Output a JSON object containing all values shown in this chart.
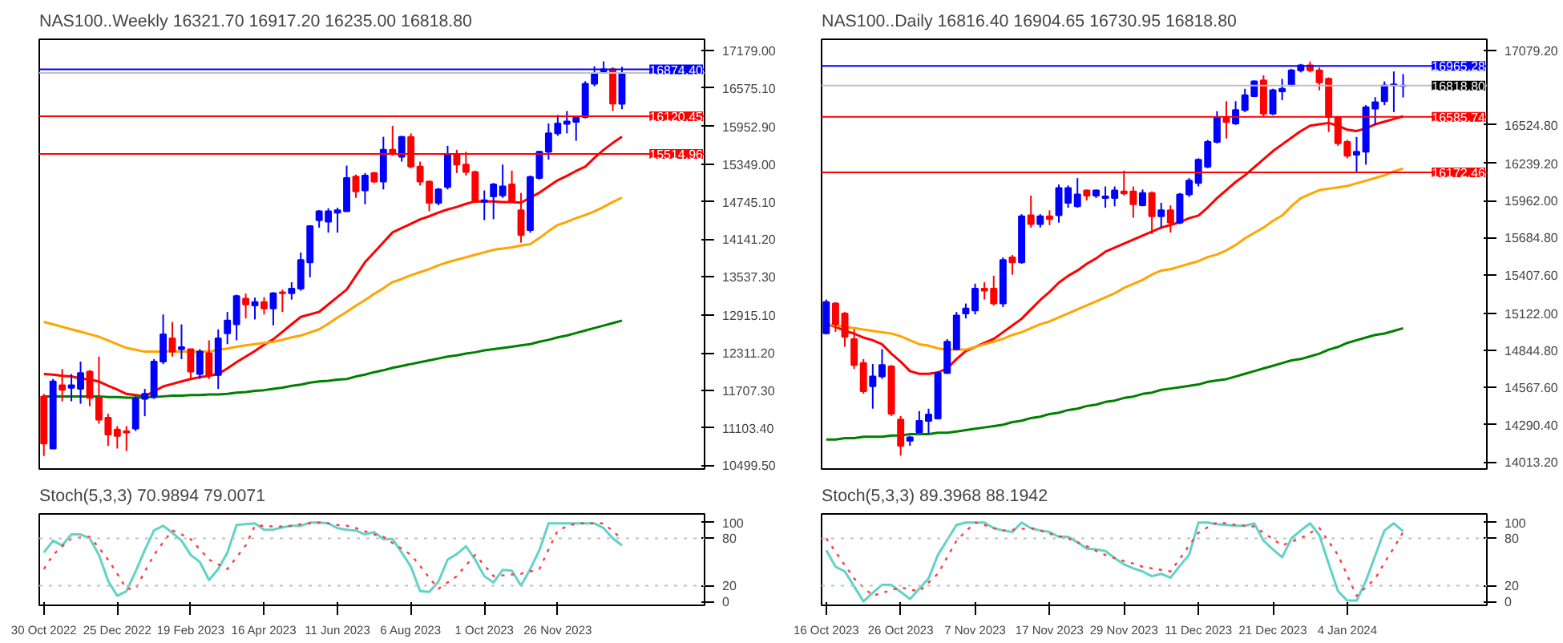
{
  "chart_data": [
    {
      "type": "candlestick",
      "title": "NAS100..Weekly  16321.70 16917.20 16235.00 16818.80",
      "tick_labels": "y",
      "grid": false,
      "categories": [
        null,
        null,
        null,
        null,
        null,
        null,
        null,
        null,
        null,
        null,
        null,
        null,
        null,
        null,
        null,
        null,
        null,
        null,
        null,
        null,
        null,
        null,
        null,
        null,
        null,
        null,
        null,
        null,
        null,
        null,
        null,
        null,
        null,
        null,
        null,
        null,
        null,
        null,
        null,
        null,
        null,
        null,
        null,
        null,
        null,
        null,
        null,
        null,
        null,
        null,
        null,
        null,
        null,
        null,
        null,
        null,
        null,
        null,
        null,
        null,
        null,
        null,
        null,
        null
      ],
      "ohlc": [
        [
          11610,
          11650,
          10650,
          10850
        ],
        [
          10770,
          11890,
          10770,
          11850
        ],
        [
          11790,
          12050,
          11530,
          11715
        ],
        [
          11747,
          11970,
          11530,
          11790
        ],
        [
          11730,
          12170,
          11490,
          11986
        ],
        [
          12010,
          12034,
          11450,
          11586
        ],
        [
          11586,
          12250,
          11170,
          11235
        ],
        [
          11267,
          11330,
          10812,
          10995
        ],
        [
          11075,
          11130,
          10770,
          10971
        ],
        [
          11051,
          11130,
          10730,
          11027
        ],
        [
          11091,
          11610,
          11051,
          11570
        ],
        [
          11570,
          11730,
          11290,
          11650
        ],
        [
          11610,
          12210,
          11570,
          12170
        ],
        [
          12170,
          12929,
          12130,
          12609
        ],
        [
          12545,
          12809,
          12250,
          12330
        ],
        [
          12370,
          12769,
          12210,
          12401
        ],
        [
          12370,
          12370,
          11890,
          12010
        ],
        [
          11970,
          12370,
          11890,
          12330
        ],
        [
          12306,
          12513,
          11890,
          11954
        ],
        [
          11954,
          12689,
          11730,
          12545
        ],
        [
          12625,
          12969,
          12450,
          12833
        ],
        [
          12769,
          13248,
          12513,
          13224
        ],
        [
          13184,
          13264,
          12865,
          13089
        ],
        [
          13073,
          13200,
          12849,
          13128
        ],
        [
          13128,
          13208,
          12929,
          13025
        ],
        [
          13025,
          13288,
          12753,
          13272
        ],
        [
          13288,
          13328,
          12969,
          13272
        ],
        [
          13272,
          13448,
          13168,
          13344
        ],
        [
          13344,
          13927,
          13312,
          13808
        ],
        [
          13768,
          14367,
          13528,
          14351
        ],
        [
          14447,
          14607,
          14327,
          14591
        ],
        [
          14423,
          14639,
          14247,
          14591
        ],
        [
          14567,
          14647,
          14247,
          14607
        ],
        [
          14591,
          15326,
          14591,
          15126
        ],
        [
          15150,
          15182,
          14807,
          14910
        ],
        [
          14926,
          15206,
          14703,
          15166
        ],
        [
          15206,
          15222,
          15046,
          15070
        ],
        [
          15070,
          15789,
          14942,
          15581
        ],
        [
          15581,
          15965,
          15486,
          15525
        ],
        [
          15470,
          15805,
          15390,
          15789
        ],
        [
          15789,
          15845,
          15286,
          15310
        ],
        [
          15310,
          15390,
          15006,
          15070
        ],
        [
          15070,
          15086,
          14591,
          14727
        ],
        [
          14727,
          14966,
          14687,
          14942
        ],
        [
          14982,
          15645,
          14942,
          15501
        ],
        [
          15501,
          15581,
          15206,
          15342
        ],
        [
          15342,
          15549,
          15166,
          15222
        ],
        [
          15222,
          15246,
          14727,
          14743
        ],
        [
          14743,
          14926,
          14447,
          14767
        ],
        [
          14830,
          15046,
          14463,
          15022
        ],
        [
          14846,
          15342,
          14806,
          14990
        ],
        [
          15022,
          15246,
          14727,
          14751
        ],
        [
          14607,
          14886,
          14087,
          14207
        ],
        [
          14287,
          15166,
          14247,
          15142
        ],
        [
          15126,
          15565,
          15102,
          15549
        ],
        [
          15549,
          16005,
          15422,
          15845
        ],
        [
          15845,
          16141,
          15805,
          16005
        ],
        [
          15997,
          16205,
          15845,
          16037
        ],
        [
          16029,
          16125,
          15725,
          16109
        ],
        [
          16109,
          16684,
          16085,
          16644
        ],
        [
          16644,
          16924,
          16604,
          16812
        ],
        [
          16844,
          17004,
          16804,
          16876
        ],
        [
          16876,
          16908,
          16205,
          16324
        ],
        [
          16321.7,
          16917.2,
          16235.0,
          16818.8
        ]
      ],
      "colors": [
        "#ff0000",
        "#0000ff",
        "#ff0000",
        "#0000ff",
        "#0000ff",
        "#ff0000",
        "#ff0000",
        "#ff0000",
        "#ff0000",
        "#ff0000",
        "#0000ff",
        "#0000ff",
        "#0000ff",
        "#0000ff",
        "#ff0000",
        "#0000ff",
        "#ff0000",
        "#0000ff",
        "#ff0000",
        "#0000ff",
        "#0000ff",
        "#0000ff",
        "#ff0000",
        "#0000ff",
        "#ff0000",
        "#0000ff",
        "#ff0000",
        "#0000ff",
        "#0000ff",
        "#0000ff",
        "#0000ff",
        "#0000ff",
        "#0000ff",
        "#0000ff",
        "#ff0000",
        "#0000ff",
        "#ff0000",
        "#0000ff",
        "#ff0000",
        "#0000ff",
        "#ff0000",
        "#ff0000",
        "#ff0000",
        "#0000ff",
        "#0000ff",
        "#ff0000",
        "#ff0000",
        "#ff0000",
        "#0000ff",
        "#0000ff",
        "#0000ff",
        "#ff0000",
        "#ff0000",
        "#0000ff",
        "#0000ff",
        "#0000ff",
        "#0000ff",
        "#0000ff",
        "#0000ff",
        "#0000ff",
        "#0000ff",
        "#0000ff",
        "#ff0000",
        "#0000ff"
      ],
      "series": [
        {
          "type": "line",
          "color": "#ff0000",
          "values": [
            11970,
            11960,
            11940,
            11930,
            11900,
            11880,
            11850,
            11780,
            11720,
            11650,
            11630,
            11610,
            11690,
            11770,
            11810,
            11850,
            11890,
            11920,
            11940,
            11970,
            12060,
            12160,
            12250,
            12340,
            12440,
            12530,
            12650,
            12770,
            12890,
            12930,
            12970,
            13090,
            13210,
            13330,
            13550,
            13770,
            13930,
            14090,
            14250,
            14320,
            14390,
            14460,
            14510,
            14570,
            14620,
            14660,
            14710,
            14750,
            14750,
            14750,
            14740,
            14740,
            14730,
            14810,
            14890,
            14990,
            15090,
            15160,
            15240,
            15310,
            15450,
            15580,
            15690,
            15790
          ]
        },
        {
          "type": "line",
          "color": "#ffa500",
          "values": [
            12810,
            12770,
            12730,
            12690,
            12650,
            12610,
            12570,
            12510,
            12450,
            12390,
            12360,
            12330,
            12330,
            12330,
            12330,
            12330,
            12330,
            12330,
            12330,
            12360,
            12380,
            12410,
            12430,
            12450,
            12470,
            12490,
            12520,
            12560,
            12590,
            12640,
            12690,
            12780,
            12880,
            12970,
            13070,
            13160,
            13260,
            13350,
            13450,
            13500,
            13560,
            13610,
            13660,
            13720,
            13770,
            13810,
            13850,
            13890,
            13930,
            13970,
            13990,
            14010,
            14040,
            14060,
            14160,
            14270,
            14370,
            14420,
            14480,
            14530,
            14590,
            14660,
            14740,
            14810
          ]
        },
        {
          "type": "line",
          "color": "#008000",
          "values": [
            11610,
            11610,
            11610,
            11610,
            11610,
            11610,
            11610,
            11600,
            11600,
            11590,
            11590,
            11600,
            11600,
            11610,
            11620,
            11620,
            11630,
            11630,
            11640,
            11640,
            11650,
            11670,
            11680,
            11700,
            11710,
            11730,
            11750,
            11780,
            11800,
            11830,
            11850,
            11860,
            11880,
            11890,
            11930,
            11960,
            12000,
            12030,
            12070,
            12100,
            12130,
            12160,
            12190,
            12220,
            12250,
            12270,
            12300,
            12320,
            12350,
            12370,
            12390,
            12410,
            12430,
            12450,
            12490,
            12520,
            12560,
            12590,
            12630,
            12670,
            12710,
            12750,
            12790,
            12830
          ]
        }
      ],
      "ylim": [
        10440,
        17360
      ],
      "yticks": [
        {
          "value": 17179,
          "label": "17179.00"
        },
        {
          "value": 16575.1,
          "label": "16575.10"
        },
        {
          "value": 15952.9,
          "label": "15952.90"
        },
        {
          "value": 15349,
          "label": "15349.00"
        },
        {
          "value": 14745.1,
          "label": "14745.10"
        },
        {
          "value": 14141.2,
          "label": "14141.20"
        },
        {
          "value": 13537.3,
          "label": "13537.30"
        },
        {
          "value": 12915.1,
          "label": "12915.10"
        },
        {
          "value": 12311.2,
          "label": "12311.20"
        },
        {
          "value": 11707.3,
          "label": "11707.30"
        },
        {
          "value": 11103.4,
          "label": "11103.40"
        },
        {
          "value": 10499.5,
          "label": "10499.50"
        }
      ],
      "ref_lines": [
        {
          "axis": "y",
          "value": 16818.8,
          "label": null,
          "color": "#c0c0c0"
        },
        {
          "axis": "y",
          "value": 16874.4,
          "label": "16874.40",
          "color": "#0000ff"
        },
        {
          "axis": "y",
          "value": 16120.45,
          "label": "16120.45",
          "color": "#ff0000"
        },
        {
          "axis": "y",
          "value": 15514.96,
          "label": "15514.96",
          "color": "#ff0000"
        }
      ]
    },
    {
      "type": "line",
      "title": "Stoch(5,3,3) 70.9894 79.0071",
      "grid": false,
      "categories": [
        "30 Oct 2022",
        null,
        null,
        null,
        null,
        null,
        null,
        null,
        "25 Dec 2022",
        null,
        null,
        null,
        null,
        null,
        null,
        null,
        "19 Feb 2023",
        null,
        null,
        null,
        null,
        null,
        null,
        null,
        "16 Apr 2023",
        null,
        null,
        null,
        null,
        null,
        null,
        null,
        "11 Jun 2023",
        null,
        null,
        null,
        null,
        null,
        null,
        null,
        "6 Aug 2023",
        null,
        null,
        null,
        null,
        null,
        null,
        null,
        "1 Oct 2023",
        null,
        null,
        null,
        null,
        null,
        null,
        null,
        "26 Nov 2023",
        null,
        null,
        null,
        null,
        null,
        null,
        null
      ],
      "series": [
        {
          "color": "#5fd3c8",
          "line_style": "solid",
          "values": [
            62,
            77,
            71,
            85,
            85,
            80,
            59,
            26,
            7,
            13,
            38,
            65,
            90,
            96,
            87,
            77,
            59,
            50,
            27,
            41,
            62,
            97,
            98,
            99,
            91,
            91,
            94,
            96,
            96,
            100,
            100,
            99,
            93,
            91,
            90,
            85,
            88,
            79,
            79,
            62,
            44,
            13,
            12,
            25,
            53,
            60,
            70,
            53,
            32,
            24,
            40,
            39,
            20,
            41,
            65,
            99,
            99,
            99,
            99,
            99,
            99,
            93,
            80,
            71
          ]
        },
        {
          "color": "#ff3b3b",
          "line_style": "dotted",
          "values": [
            41,
            59,
            70,
            80,
            81,
            82,
            68,
            53,
            35,
            16,
            16,
            38,
            59,
            75,
            90,
            85,
            79,
            66,
            53,
            47,
            41,
            56,
            71,
            96,
            96,
            95,
            95,
            96,
            98,
            99,
            100,
            99,
            97,
            96,
            93,
            89,
            85,
            82,
            74,
            67,
            59,
            45,
            30,
            16,
            24,
            32,
            46,
            59,
            46,
            32,
            33,
            34,
            35,
            38,
            41,
            66,
            90,
            95,
            99,
            99,
            99,
            99,
            89,
            79
          ]
        }
      ],
      "ylim": [
        -5,
        111
      ],
      "yticks": [
        0,
        20,
        80,
        100
      ],
      "ref_lines": [
        {
          "axis": "y",
          "value": 20,
          "color": "#c0c0c0",
          "line_style": "dotted"
        },
        {
          "axis": "y",
          "value": 80,
          "color": "#c0c0c0",
          "line_style": "dotted"
        }
      ]
    },
    {
      "type": "candlestick",
      "title": "NAS100..Daily  16816.40 16904.65 16730.95 16818.80",
      "tick_labels": "y",
      "grid": false,
      "categories": [
        null,
        null,
        null,
        null,
        null,
        null,
        null,
        null,
        null,
        null,
        null,
        null,
        null,
        null,
        null,
        null,
        null,
        null,
        null,
        null,
        null,
        null,
        null,
        null,
        null,
        null,
        null,
        null,
        null,
        null,
        null,
        null,
        null,
        null,
        null,
        null,
        null,
        null,
        null,
        null,
        null,
        null,
        null,
        null,
        null,
        null,
        null,
        null,
        null,
        null,
        null,
        null,
        null,
        null,
        null,
        null,
        null,
        null,
        null,
        null,
        null,
        null,
        null
      ],
      "ohlc": [
        [
          14972,
          15224,
          14965,
          15205
        ],
        [
          15194,
          15205,
          14983,
          15039
        ],
        [
          15120,
          15131,
          14872,
          14946
        ],
        [
          14928,
          15002,
          14706,
          14736
        ],
        [
          14750,
          14780,
          14521,
          14540
        ],
        [
          14577,
          14743,
          14410,
          14651
        ],
        [
          14651,
          14854,
          14632,
          14736
        ],
        [
          14725,
          14736,
          14355,
          14373
        ],
        [
          14329,
          14355,
          14059,
          14133
        ],
        [
          14170,
          14207,
          14133,
          14196
        ],
        [
          14233,
          14392,
          14233,
          14318
        ],
        [
          14318,
          14410,
          14225,
          14366
        ],
        [
          14336,
          14688,
          14329,
          14676
        ],
        [
          14676,
          14928,
          14669,
          14909
        ],
        [
          14854,
          15131,
          14847,
          15105
        ],
        [
          15120,
          15194,
          15083,
          15157
        ],
        [
          15142,
          15342,
          15113,
          15305
        ],
        [
          15305,
          15353,
          15224,
          15290
        ],
        [
          15305,
          15401,
          15179,
          15194
        ],
        [
          15194,
          15538,
          15168,
          15519
        ],
        [
          15538,
          15556,
          15409,
          15501
        ],
        [
          15501,
          15860,
          15490,
          15845
        ],
        [
          15852,
          15999,
          15760,
          15786
        ],
        [
          15786,
          15860,
          15760,
          15845
        ],
        [
          15845,
          15889,
          15778,
          15823
        ],
        [
          15852,
          16081,
          15797,
          16055
        ],
        [
          15945,
          16074,
          15908,
          16055
        ],
        [
          15919,
          16129,
          15908,
          16007
        ],
        [
          16037,
          16044,
          15963,
          15999
        ],
        [
          15999,
          16044,
          15981,
          16037
        ],
        [
          15981,
          16067,
          15908,
          15993
        ],
        [
          15981,
          16067,
          15919,
          16037
        ],
        [
          16030,
          16185,
          15999,
          16015
        ],
        [
          16030,
          16067,
          15834,
          15934
        ],
        [
          15926,
          16044,
          15919,
          16018
        ],
        [
          16018,
          16030,
          15712,
          15845
        ],
        [
          15845,
          15945,
          15760,
          15889
        ],
        [
          15889,
          15926,
          15723,
          15797
        ],
        [
          15797,
          16018,
          15786,
          16007
        ],
        [
          16007,
          16129,
          15989,
          16111
        ],
        [
          16092,
          16277,
          16067,
          16266
        ],
        [
          16214,
          16414,
          16203,
          16399
        ],
        [
          16399,
          16628,
          16388,
          16584
        ],
        [
          16584,
          16702,
          16425,
          16547
        ],
        [
          16536,
          16702,
          16525,
          16636
        ],
        [
          16636,
          16795,
          16621,
          16747
        ],
        [
          16739,
          16858,
          16732,
          16850
        ],
        [
          16858,
          16895,
          16584,
          16610
        ],
        [
          16610,
          16795,
          16599,
          16784
        ],
        [
          16776,
          16869,
          16710,
          16795
        ],
        [
          16821,
          16943,
          16813,
          16932
        ],
        [
          16932,
          16980,
          16917,
          16969
        ],
        [
          16969,
          16998,
          16917,
          16932
        ],
        [
          16932,
          16954,
          16784,
          16843
        ],
        [
          16869,
          16880,
          16473,
          16584
        ],
        [
          16584,
          16592,
          16370,
          16388
        ],
        [
          16399,
          16414,
          16277,
          16296
        ],
        [
          16303,
          16436,
          16177,
          16325
        ],
        [
          16325,
          16673,
          16229,
          16658
        ],
        [
          16647,
          16732,
          16525,
          16695
        ],
        [
          16702,
          16850,
          16673,
          16821
        ],
        [
          16821,
          16924,
          16621,
          16828
        ],
        [
          16816.4,
          16904.65,
          16730.95,
          16818.8
        ]
      ],
      "colors": [
        "#0000ff",
        "#ff0000",
        "#ff0000",
        "#ff0000",
        "#ff0000",
        "#0000ff",
        "#0000ff",
        "#ff0000",
        "#ff0000",
        "#0000ff",
        "#0000ff",
        "#0000ff",
        "#0000ff",
        "#0000ff",
        "#0000ff",
        "#0000ff",
        "#0000ff",
        "#ff0000",
        "#ff0000",
        "#0000ff",
        "#ff0000",
        "#0000ff",
        "#ff0000",
        "#0000ff",
        "#ff0000",
        "#0000ff",
        "#0000ff",
        "#0000ff",
        "#ff0000",
        "#0000ff",
        "#0000ff",
        "#0000ff",
        "#ff0000",
        "#ff0000",
        "#0000ff",
        "#ff0000",
        "#0000ff",
        "#ff0000",
        "#0000ff",
        "#0000ff",
        "#0000ff",
        "#0000ff",
        "#0000ff",
        "#ff0000",
        "#0000ff",
        "#0000ff",
        "#0000ff",
        "#ff0000",
        "#0000ff",
        "#0000ff",
        "#0000ff",
        "#0000ff",
        "#ff0000",
        "#ff0000",
        "#ff0000",
        "#ff0000",
        "#ff0000",
        "#0000ff",
        "#0000ff",
        "#0000ff",
        "#0000ff",
        "#0000ff",
        "#0000ff"
      ],
      "series": [
        {
          "type": "line",
          "color": "#ff0000",
          "values": [
            15040,
            15020,
            14990,
            14970,
            14940,
            14920,
            14890,
            14820,
            14760,
            14690,
            14670,
            14670,
            14680,
            14710,
            14780,
            14840,
            14870,
            14900,
            14930,
            14980,
            15030,
            15080,
            15150,
            15220,
            15280,
            15350,
            15400,
            15440,
            15490,
            15530,
            15580,
            15610,
            15640,
            15670,
            15700,
            15730,
            15760,
            15780,
            15800,
            15830,
            15850,
            15910,
            15980,
            16040,
            16100,
            16150,
            16210,
            16270,
            16330,
            16380,
            16430,
            16480,
            16520,
            16530,
            16540,
            16520,
            16490,
            16480,
            16500,
            16530,
            16550,
            16570,
            16590
          ]
        },
        {
          "type": "line",
          "color": "#ffa500",
          "values": [
            15040,
            15030,
            15020,
            15010,
            15000,
            14990,
            14980,
            14970,
            14950,
            14920,
            14890,
            14880,
            14860,
            14850,
            14850,
            14850,
            14870,
            14890,
            14910,
            14930,
            14960,
            14980,
            15010,
            15040,
            15060,
            15090,
            15120,
            15150,
            15180,
            15210,
            15240,
            15270,
            15310,
            15340,
            15370,
            15410,
            15440,
            15450,
            15470,
            15490,
            15510,
            15540,
            15560,
            15590,
            15630,
            15680,
            15720,
            15760,
            15810,
            15850,
            15920,
            15980,
            16010,
            16040,
            16050,
            16060,
            16070,
            16090,
            16110,
            16130,
            16150,
            16180,
            16200
          ]
        },
        {
          "type": "line",
          "color": "#008000",
          "values": [
            14180,
            14180,
            14190,
            14190,
            14200,
            14200,
            14200,
            14210,
            14210,
            14220,
            14220,
            14220,
            14230,
            14230,
            14240,
            14250,
            14260,
            14270,
            14280,
            14290,
            14310,
            14320,
            14340,
            14350,
            14370,
            14380,
            14400,
            14410,
            14430,
            14440,
            14460,
            14470,
            14490,
            14500,
            14520,
            14530,
            14550,
            14560,
            14570,
            14580,
            14590,
            14610,
            14620,
            14630,
            14650,
            14670,
            14690,
            14710,
            14730,
            14750,
            14770,
            14780,
            14800,
            14820,
            14850,
            14870,
            14900,
            14920,
            14940,
            14960,
            14970,
            14990,
            15010
          ]
        }
      ],
      "ylim": [
        13960,
        17164
      ],
      "yticks": [
        {
          "value": 17079.2,
          "label": "17079.20"
        },
        {
          "value": 16524.8,
          "label": "16524.80"
        },
        {
          "value": 16239.2,
          "label": "16239.20"
        },
        {
          "value": 15962,
          "label": "15962.00"
        },
        {
          "value": 15684.8,
          "label": "15684.80"
        },
        {
          "value": 15407.6,
          "label": "15407.60"
        },
        {
          "value": 15122,
          "label": "15122.00"
        },
        {
          "value": 14844.8,
          "label": "14844.80"
        },
        {
          "value": 14567.6,
          "label": "14567.60"
        },
        {
          "value": 14290.4,
          "label": "14290.40"
        },
        {
          "value": 14013.2,
          "label": "14013.20"
        }
      ],
      "ref_lines": [
        {
          "axis": "y",
          "value": 16818.8,
          "label": "16818.80",
          "color": "#c0c0c0"
        },
        {
          "axis": "y",
          "value": 16965.28,
          "label": "16965.28",
          "color": "#0000ff"
        },
        {
          "axis": "y",
          "value": 16585.74,
          "label": "16585.74",
          "color": "#ff0000"
        },
        {
          "axis": "y",
          "value": 16172.46,
          "label": "16172.46",
          "color": "#ff0000"
        }
      ]
    },
    {
      "type": "line",
      "title": "Stoch(5,3,3) 89.3968 88.1942",
      "grid": false,
      "categories": [
        "16 Oct 2023",
        null,
        null,
        null,
        null,
        null,
        null,
        null,
        "26 Oct 2023",
        null,
        null,
        null,
        null,
        null,
        null,
        null,
        "7 Nov 2023",
        null,
        null,
        null,
        null,
        null,
        null,
        null,
        "17 Nov 2023",
        null,
        null,
        null,
        null,
        null,
        null,
        null,
        "29 Nov 2023",
        null,
        null,
        null,
        null,
        null,
        null,
        null,
        "11 Dec 2023",
        null,
        null,
        null,
        null,
        null,
        null,
        null,
        "21 Dec 2023",
        null,
        null,
        null,
        null,
        null,
        null,
        null,
        "4 Jan 2024",
        null,
        null,
        null,
        null,
        null,
        null
      ],
      "series": [
        {
          "color": "#5fd3c8",
          "line_style": "solid",
          "values": [
            65,
            44,
            38,
            19,
            0,
            11,
            21,
            21,
            12,
            3,
            16,
            29,
            59,
            78,
            97,
            100,
            100,
            100,
            93,
            90,
            88,
            100,
            93,
            90,
            88,
            82,
            82,
            75,
            67,
            66,
            64,
            55,
            47,
            42,
            38,
            32,
            35,
            30,
            45,
            59,
            100,
            100,
            98,
            97,
            96,
            96,
            99,
            77,
            66,
            56,
            80,
            90,
            99,
            84,
            48,
            13,
            1,
            1,
            26,
            58,
            90,
            99,
            89
          ]
        },
        {
          "color": "#ff3b3b",
          "line_style": "dotted",
          "values": [
            80,
            63,
            46,
            29,
            18,
            7,
            11,
            14,
            18,
            15,
            13,
            24,
            35,
            56,
            77,
            89,
            100,
            97,
            93,
            90,
            91,
            92,
            93,
            90,
            86,
            83,
            80,
            75,
            70,
            64,
            59,
            55,
            51,
            48,
            44,
            42,
            40,
            38,
            54,
            71,
            87,
            94,
            100,
            99,
            97,
            96,
            95,
            87,
            79,
            71,
            76,
            80,
            87,
            93,
            76,
            59,
            33,
            7,
            18,
            29,
            49,
            68,
            88
          ]
        }
      ],
      "ylim": [
        -5,
        111
      ],
      "yticks": [
        0,
        20,
        80,
        100
      ],
      "ref_lines": [
        {
          "axis": "y",
          "value": 20,
          "color": "#c0c0c0",
          "line_style": "dotted"
        },
        {
          "axis": "y",
          "value": 80,
          "color": "#c0c0c0",
          "line_style": "dotted"
        }
      ]
    }
  ]
}
